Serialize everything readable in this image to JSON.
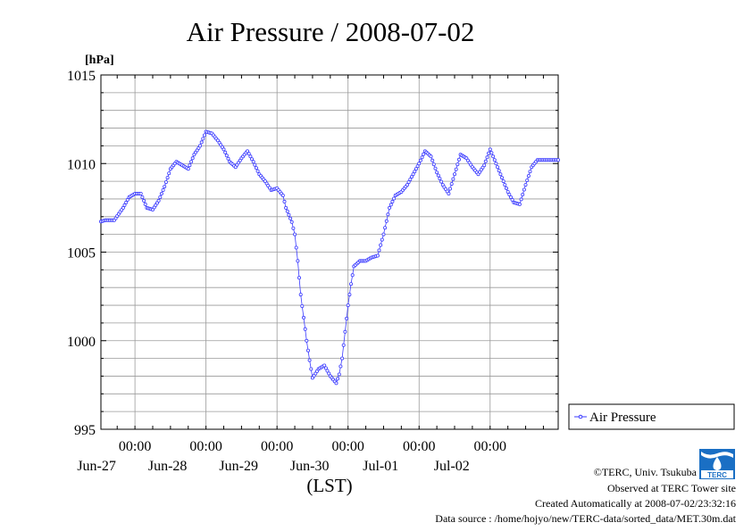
{
  "chart_data": {
    "type": "line",
    "title": "Air Pressure / 2008-07-02",
    "ylabel": "[hPa]",
    "xlabel": "(LST)",
    "ylim": [
      995,
      1015
    ],
    "yticks": [
      995,
      1000,
      1005,
      1010,
      1015
    ],
    "xlim": [
      "2008-06-26T12:30",
      "2008-07-02T23:00"
    ],
    "xticks": [
      {
        "time": "2008-06-27T00:00",
        "label": "00:00",
        "date_label": "Jun-27"
      },
      {
        "time": "2008-06-28T00:00",
        "label": "00:00",
        "date_label": "Jun-28"
      },
      {
        "time": "2008-06-29T00:00",
        "label": "00:00",
        "date_label": "Jun-29"
      },
      {
        "time": "2008-06-30T00:00",
        "label": "00:00",
        "date_label": "Jun-30"
      },
      {
        "time": "2008-07-01T00:00",
        "label": "00:00",
        "date_label": "Jul-01"
      },
      {
        "time": "2008-07-02T00:00",
        "label": "00:00",
        "date_label": "Jul-02"
      }
    ],
    "grid": true,
    "legend_position": "right",
    "series": [
      {
        "name": "Air Pressure",
        "color": "#3b3bff",
        "marker": "open-circle",
        "x": [
          "2008-06-26T12:00",
          "2008-06-26T14:00",
          "2008-06-26T17:00",
          "2008-06-26T20:00",
          "2008-06-26T22:00",
          "2008-06-27T00:00",
          "2008-06-27T02:00",
          "2008-06-27T04:00",
          "2008-06-27T06:00",
          "2008-06-27T08:00",
          "2008-06-27T10:00",
          "2008-06-27T12:00",
          "2008-06-27T14:00",
          "2008-06-27T16:00",
          "2008-06-27T18:00",
          "2008-06-27T20:00",
          "2008-06-27T22:00",
          "2008-06-28T00:00",
          "2008-06-28T02:00",
          "2008-06-28T04:00",
          "2008-06-28T06:00",
          "2008-06-28T08:00",
          "2008-06-28T10:00",
          "2008-06-28T12:00",
          "2008-06-28T14:00",
          "2008-06-28T16:00",
          "2008-06-28T18:00",
          "2008-06-28T20:00",
          "2008-06-28T22:00",
          "2008-06-29T00:00",
          "2008-06-29T02:00",
          "2008-06-29T03:00",
          "2008-06-29T04:00",
          "2008-06-29T05:00",
          "2008-06-29T06:00",
          "2008-06-29T07:00",
          "2008-06-29T08:00",
          "2008-06-29T10:00",
          "2008-06-29T11:00",
          "2008-06-29T12:00",
          "2008-06-29T14:00",
          "2008-06-29T16:00",
          "2008-06-29T18:00",
          "2008-06-29T20:00",
          "2008-06-29T21:00",
          "2008-06-29T22:00",
          "2008-06-30T00:00",
          "2008-06-30T01:00",
          "2008-06-30T02:00",
          "2008-06-30T04:00",
          "2008-06-30T06:00",
          "2008-06-30T08:00",
          "2008-06-30T10:00",
          "2008-06-30T12:00",
          "2008-06-30T14:00",
          "2008-06-30T16:00",
          "2008-06-30T18:00",
          "2008-06-30T20:00",
          "2008-06-30T22:00",
          "2008-07-01T00:00",
          "2008-07-01T02:00",
          "2008-07-01T04:00",
          "2008-07-01T06:00",
          "2008-07-01T08:00",
          "2008-07-01T10:00",
          "2008-07-01T12:00",
          "2008-07-01T14:00",
          "2008-07-01T16:00",
          "2008-07-01T18:00",
          "2008-07-01T20:00",
          "2008-07-01T22:00",
          "2008-07-02T00:00",
          "2008-07-02T02:00",
          "2008-07-02T04:00",
          "2008-07-02T06:00",
          "2008-07-02T08:00",
          "2008-07-02T10:00",
          "2008-07-02T12:00",
          "2008-07-02T14:00",
          "2008-07-02T16:00",
          "2008-07-02T18:00",
          "2008-07-02T20:00",
          "2008-07-02T22:00",
          "2008-07-02T23:00"
        ],
        "y": [
          1006.7,
          1006.8,
          1006.8,
          1007.5,
          1008.1,
          1008.3,
          1008.3,
          1007.5,
          1007.4,
          1007.9,
          1008.7,
          1009.7,
          1010.1,
          1009.9,
          1009.7,
          1010.5,
          1011.0,
          1011.8,
          1011.7,
          1011.3,
          1010.8,
          1010.1,
          1009.8,
          1010.3,
          1010.7,
          1010.1,
          1009.4,
          1009.0,
          1008.5,
          1008.6,
          1008.2,
          1007.5,
          1007.1,
          1006.7,
          1006.0,
          1004.5,
          1002.6,
          1000.0,
          998.9,
          997.9,
          998.4,
          998.6,
          998.0,
          997.6,
          998.1,
          999.0,
          1002.0,
          1003.2,
          1004.2,
          1004.5,
          1004.5,
          1004.7,
          1004.8,
          1006.0,
          1007.5,
          1008.2,
          1008.4,
          1008.8,
          1009.4,
          1010.0,
          1010.7,
          1010.4,
          1009.5,
          1008.8,
          1008.3,
          1009.4,
          1010.5,
          1010.3,
          1009.8,
          1009.4,
          1009.9,
          1010.8,
          1010.0,
          1009.2,
          1008.4,
          1007.8,
          1007.7,
          1008.8,
          1009.8,
          1010.2,
          1010.2,
          1010.2,
          1010.2,
          1010.2
        ]
      }
    ]
  },
  "credits": {
    "copyright": "©TERC, Univ. Tsukuba",
    "observed": "Observed at TERC Tower site",
    "created": "Created Automatically at 2008-07-02/23:32:16",
    "source": "Data source : /home/hojyo/new/TERC-data/sorted_data/MET.30m.dat",
    "logo_text": "TERC"
  }
}
